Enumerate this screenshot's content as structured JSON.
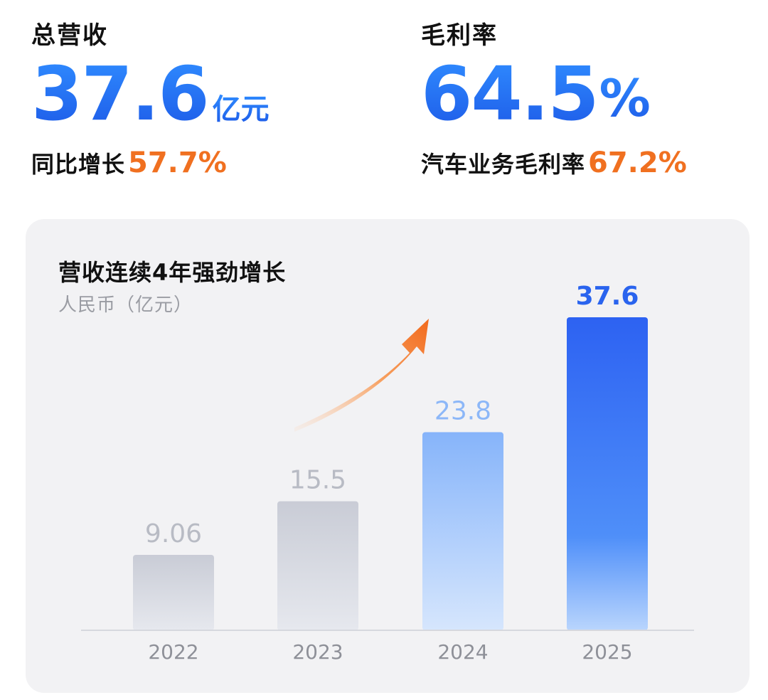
{
  "revenue": {
    "label": "总营收",
    "value": "37.6",
    "unit": "亿元",
    "growth_label": "同比增长",
    "growth_value": "57.7%"
  },
  "margin": {
    "label": "毛利率",
    "value": "64.5",
    "unit": "%",
    "auto_label": "汽车业务毛利率",
    "auto_value": "67.2%"
  },
  "colors": {
    "accent_blue": "#1e5ce8",
    "accent_orange": "#f07020"
  },
  "chart_data": {
    "type": "bar",
    "title": "营收连续4年强劲增长",
    "ylabel": "人民币（亿元）",
    "categories": [
      "2022",
      "2023",
      "2024",
      "2025"
    ],
    "values": [
      9.06,
      15.5,
      23.8,
      37.6
    ],
    "value_labels": [
      "9.06",
      "15.5",
      "23.8",
      "37.6"
    ],
    "ylim": [
      0,
      37.6
    ],
    "grid": false,
    "trend_arrow": true
  }
}
